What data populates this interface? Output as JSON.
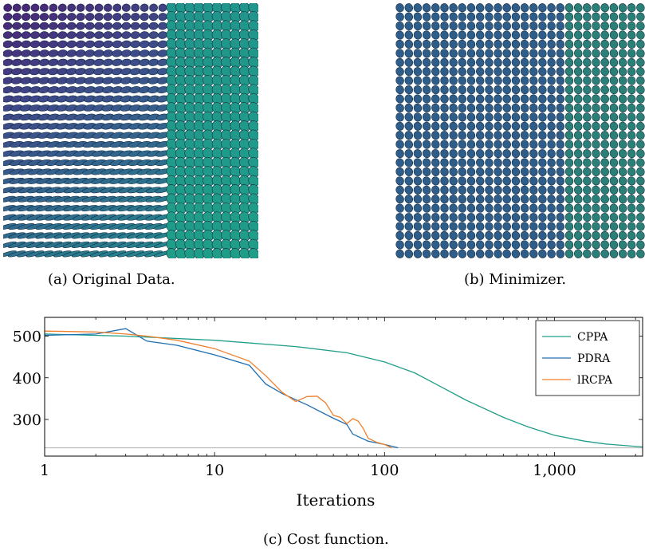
{
  "captions": {
    "a": "(a) Original Data.",
    "b": "(b) Minimizer.",
    "c": "(c) Cost function."
  },
  "panels": {
    "original": {
      "grid_cols": 28,
      "grid_rows": 28,
      "split_fraction": 0.66,
      "colormap": "viridis"
    },
    "minimizer": {
      "grid_cols": 28,
      "grid_rows": 28,
      "split_fraction": 0.68,
      "colors": [
        "#2f5d8a",
        "#2a7f77"
      ]
    }
  },
  "chart_data": {
    "type": "line",
    "xscale": "log",
    "xlabel": "Iterations",
    "xlim": [
      1,
      3300
    ],
    "ylim": [
      212,
      545
    ],
    "x_ticks": [
      1,
      10,
      100,
      1000
    ],
    "x_tick_labels": [
      "1",
      "10",
      "100",
      "1,000"
    ],
    "y_ticks": [
      300,
      400,
      500
    ],
    "y_tick_labels": [
      "300",
      "400",
      "500"
    ],
    "grid": false,
    "legend_position": "top-right",
    "reference_line": {
      "y": 232,
      "color": "#bbbbbb"
    },
    "series": [
      {
        "name": "CPPA",
        "color": "#1f9e89",
        "x": [
          1,
          3,
          10,
          30,
          60,
          100,
          150,
          200,
          300,
          500,
          700,
          1000,
          1500,
          2000,
          3300
        ],
        "y": [
          505,
          500,
          490,
          475,
          460,
          438,
          412,
          385,
          347,
          305,
          282,
          262,
          248,
          241,
          234
        ]
      },
      {
        "name": "PDRA",
        "color": "#1f6fb4",
        "x": [
          1,
          2,
          3,
          4,
          6,
          10,
          16,
          20,
          25,
          35,
          50,
          60,
          65,
          80,
          100,
          120
        ],
        "y": [
          502,
          505,
          518,
          488,
          478,
          455,
          430,
          385,
          362,
          335,
          303,
          288,
          265,
          248,
          240,
          232
        ]
      },
      {
        "name": "lRCPA",
        "color": "#f07f2a",
        "x": [
          1,
          2,
          3,
          4,
          6,
          10,
          16,
          20,
          25,
          30,
          35,
          40,
          45,
          50,
          55,
          60,
          65,
          70,
          75,
          80,
          90,
          100,
          110
        ],
        "y": [
          512,
          510,
          505,
          500,
          490,
          470,
          440,
          405,
          365,
          343,
          355,
          356,
          340,
          310,
          305,
          290,
          302,
          296,
          278,
          255,
          245,
          240,
          232
        ]
      }
    ]
  }
}
